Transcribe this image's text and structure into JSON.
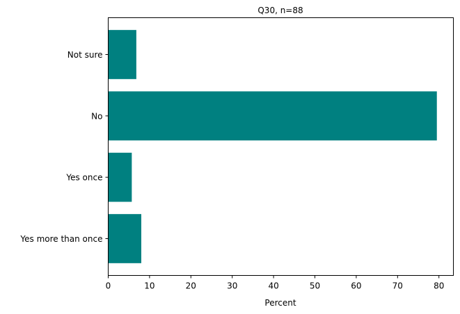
{
  "chart_data": {
    "type": "bar",
    "orientation": "horizontal",
    "title": "Q30, n=88",
    "xlabel": "Percent",
    "ylabel": "",
    "categories": [
      "Not sure",
      "No",
      "Yes once",
      "Yes more than once"
    ],
    "values": [
      6.8,
      79.5,
      5.7,
      8.0
    ],
    "xlim": [
      0,
      83.5
    ],
    "xticks": [
      0,
      10,
      20,
      30,
      40,
      50,
      60,
      70,
      80
    ],
    "bar_color": "#008080",
    "grid": false,
    "legend": "none"
  }
}
